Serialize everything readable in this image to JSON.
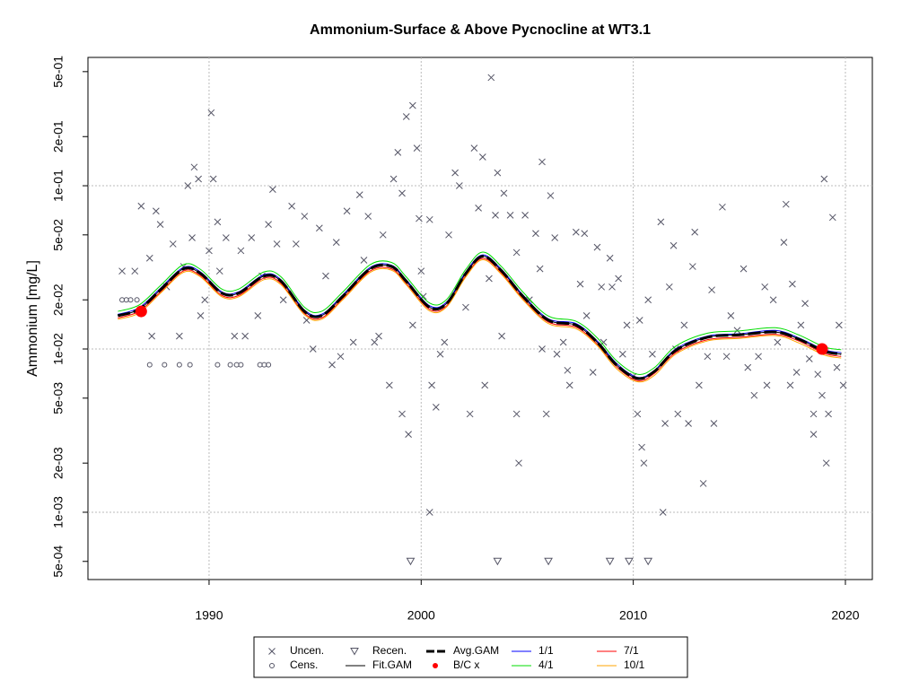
{
  "chart_data": {
    "type": "scatter",
    "title": "Ammonium-Surface & Above Pycnocline at WT3.1",
    "y_label": "Ammonium [mg/L]",
    "log_y": true,
    "grid": true,
    "legend_position": "bottom",
    "xlim": [
      1984.29,
      2021.27
    ],
    "xticks": [
      1990,
      2000,
      2010,
      2020
    ],
    "ylim": [
      0.000387,
      0.611
    ],
    "yticks": [
      {
        "value": 0.5,
        "label": "5e-01"
      },
      {
        "value": 0.2,
        "label": "2e-01"
      },
      {
        "value": 0.1,
        "label": "1e-01"
      },
      {
        "value": 0.05,
        "label": "5e-02"
      },
      {
        "value": 0.02,
        "label": "2e-02"
      },
      {
        "value": 0.01,
        "label": "1e-02"
      },
      {
        "value": 0.005,
        "label": "5e-03"
      },
      {
        "value": 0.002,
        "label": "2e-03"
      },
      {
        "value": 0.001,
        "label": "1e-03"
      },
      {
        "value": 0.0005,
        "label": "5e-04"
      }
    ],
    "grid_values": [
      0.1,
      0.01,
      0.001
    ],
    "series": [
      {
        "name": "Uncen.",
        "color": "#555566",
        "marker": "x",
        "x": [
          1985.9,
          1986.5,
          1986.8,
          1987.2,
          1987.3,
          1987.5,
          1987.7,
          1988.0,
          1988.3,
          1988.6,
          1988.8,
          1989.0,
          1989.2,
          1989.3,
          1989.5,
          1989.6,
          1989.8,
          1990.0,
          1990.1,
          1990.2,
          1990.4,
          1990.5,
          1990.8,
          1991.2,
          1991.5,
          1991.7,
          1992.0,
          1992.3,
          1992.5,
          1992.8,
          1993.0,
          1993.2,
          1993.5,
          1993.9,
          1994.1,
          1994.5,
          1994.6,
          1994.9,
          1995.2,
          1995.5,
          1995.8,
          1996.0,
          1996.2,
          1996.5,
          1996.8,
          1997.1,
          1997.3,
          1997.5,
          1997.8,
          1998.0,
          1998.2,
          1998.5,
          1998.7,
          1998.9,
          1999.1,
          1999.1,
          1999.3,
          1999.4,
          1999.6,
          1999.6,
          1999.8,
          1999.9,
          2000.0,
          2000.1,
          2000.4,
          2000.4,
          2000.5,
          2000.7,
          2000.9,
          2001.1,
          2001.3,
          2001.6,
          2001.8,
          2002.1,
          2002.3,
          2002.5,
          2002.7,
          2002.9,
          2003.0,
          2003.2,
          2003.3,
          2003.5,
          2003.6,
          2003.8,
          2003.9,
          2004.2,
          2004.5,
          2004.5,
          2004.6,
          2004.9,
          2005.1,
          2005.4,
          2005.6,
          2005.7,
          2005.7,
          2005.9,
          2006.1,
          2006.3,
          2006.4,
          2006.7,
          2006.9,
          2007.0,
          2007.3,
          2007.5,
          2007.7,
          2007.8,
          2008.1,
          2008.3,
          2008.5,
          2008.6,
          2008.9,
          2009.0,
          2009.3,
          2009.5,
          2009.7,
          2010.0,
          2010.2,
          2010.3,
          2010.4,
          2010.5,
          2010.7,
          2010.9,
          2011.3,
          2011.4,
          2011.5,
          2011.7,
          2011.9,
          2012.0,
          2012.1,
          2012.4,
          2012.6,
          2012.8,
          2012.9,
          2013.1,
          2013.3,
          2013.5,
          2013.7,
          2013.8,
          2014.2,
          2014.4,
          2014.6,
          2014.9,
          2015.2,
          2015.4,
          2015.7,
          2015.9,
          2016.2,
          2016.3,
          2016.6,
          2016.8,
          2017.1,
          2017.2,
          2017.4,
          2017.5,
          2017.7,
          2017.9,
          2018.1,
          2018.3,
          2018.5,
          2018.5,
          2018.7,
          2018.9,
          2019.0,
          2019.1,
          2019.2,
          2019.4,
          2019.6,
          2019.7,
          2019.9
        ],
        "values": [
          0.03,
          0.03,
          0.075,
          0.036,
          0.012,
          0.07,
          0.058,
          0.024,
          0.044,
          0.012,
          0.032,
          0.1,
          0.048,
          0.13,
          0.11,
          0.016,
          0.02,
          0.04,
          0.28,
          0.11,
          0.06,
          0.03,
          0.048,
          0.012,
          0.04,
          0.012,
          0.048,
          0.016,
          0.028,
          0.058,
          0.095,
          0.044,
          0.02,
          0.075,
          0.044,
          0.065,
          0.015,
          0.01,
          0.055,
          0.028,
          0.008,
          0.045,
          0.009,
          0.07,
          0.011,
          0.088,
          0.035,
          0.065,
          0.011,
          0.012,
          0.05,
          0.006,
          0.11,
          0.16,
          0.09,
          0.004,
          0.265,
          0.003,
          0.31,
          0.014,
          0.17,
          0.063,
          0.03,
          0.021,
          0.062,
          0.001,
          0.006,
          0.0044,
          0.0093,
          0.011,
          0.05,
          0.12,
          0.1,
          0.018,
          0.004,
          0.17,
          0.073,
          0.15,
          0.006,
          0.027,
          0.46,
          0.066,
          0.12,
          0.012,
          0.09,
          0.066,
          0.039,
          0.004,
          0.002,
          0.066,
          0.02,
          0.051,
          0.031,
          0.01,
          0.14,
          0.004,
          0.087,
          0.048,
          0.0093,
          0.011,
          0.0074,
          0.006,
          0.052,
          0.025,
          0.051,
          0.016,
          0.0072,
          0.042,
          0.024,
          0.011,
          0.036,
          0.024,
          0.027,
          0.0093,
          0.014,
          0.0068,
          0.004,
          0.015,
          0.0025,
          0.002,
          0.02,
          0.0093,
          0.06,
          0.001,
          0.0035,
          0.024,
          0.043,
          0.01,
          0.004,
          0.014,
          0.0035,
          0.032,
          0.052,
          0.006,
          0.0015,
          0.009,
          0.023,
          0.0035,
          0.074,
          0.009,
          0.016,
          0.013,
          0.031,
          0.0077,
          0.0052,
          0.009,
          0.024,
          0.006,
          0.02,
          0.011,
          0.045,
          0.077,
          0.006,
          0.025,
          0.0072,
          0.014,
          0.019,
          0.0087,
          0.004,
          0.003,
          0.007,
          0.0052,
          0.11,
          0.002,
          0.004,
          0.064,
          0.0077,
          0.014,
          0.006
        ]
      },
      {
        "name": "Cens.",
        "color": "#555566",
        "marker": "o",
        "x": [
          1985.9,
          1986.1,
          1986.3,
          1986.6,
          1987.2,
          1987.9,
          1988.6,
          1989.1,
          1990.4,
          1991.0,
          1991.3,
          1991.5,
          1992.4,
          1992.6,
          1992.8
        ],
        "values": [
          0.02,
          0.02,
          0.02,
          0.02,
          0.008,
          0.008,
          0.008,
          0.008,
          0.008,
          0.008,
          0.008,
          0.008,
          0.008,
          0.008,
          0.008
        ]
      },
      {
        "name": "Recen.",
        "color": "#555566",
        "marker": "v",
        "x": [
          1999.5,
          2003.6,
          2006.0,
          2008.9,
          2009.8,
          2010.7
        ],
        "values": [
          0.0005,
          0.0005,
          0.0005,
          0.0005,
          0.0005,
          0.0005
        ]
      },
      {
        "name": "Fit.GAM",
        "color": "#000000",
        "marker": "line",
        "width": 1,
        "x": [
          1985.7,
          1986.7,
          1987.7,
          1988.8,
          1989.6,
          1990.6,
          1991.4,
          1992.6,
          1993.4,
          1994.5,
          1995.3,
          1996.3,
          1997.6,
          1998.6,
          1999.3,
          2000.4,
          2001.2,
          2002.1,
          2002.9,
          2003.8,
          2004.8,
          2006,
          2007.3,
          2008.3,
          2009.2,
          2010.2,
          2011,
          2012,
          2013.5,
          2015,
          2016.7,
          2017.8,
          2019,
          2019.8
        ],
        "values": [
          0.016,
          0.0175,
          0.023,
          0.031,
          0.029,
          0.022,
          0.022,
          0.028,
          0.026,
          0.017,
          0.016,
          0.021,
          0.031,
          0.032,
          0.026,
          0.018,
          0.019,
          0.029,
          0.037,
          0.03,
          0.021,
          0.015,
          0.014,
          0.011,
          0.008,
          0.0066,
          0.0073,
          0.0098,
          0.0118,
          0.0122,
          0.0127,
          0.0115,
          0.0097,
          0.0093
        ]
      },
      {
        "name": "Avg.GAM",
        "color": "#000000",
        "marker": "dash",
        "width": 3,
        "x": [
          1985.7,
          1986.7,
          1987.7,
          1988.8,
          1989.6,
          1990.6,
          1991.4,
          1992.6,
          1993.4,
          1994.5,
          1995.3,
          1996.3,
          1997.6,
          1998.6,
          1999.3,
          2000.4,
          2001.2,
          2002.1,
          2002.9,
          2003.8,
          2004.8,
          2006,
          2007.3,
          2008.3,
          2009.2,
          2010.2,
          2011,
          2012,
          2013.5,
          2015,
          2016.7,
          2017.8,
          2019,
          2019.8
        ],
        "values": [
          0.016,
          0.0175,
          0.023,
          0.031,
          0.029,
          0.022,
          0.022,
          0.028,
          0.026,
          0.017,
          0.016,
          0.021,
          0.031,
          0.032,
          0.026,
          0.018,
          0.019,
          0.029,
          0.037,
          0.03,
          0.021,
          0.015,
          0.014,
          0.011,
          0.008,
          0.0066,
          0.0073,
          0.0098,
          0.0118,
          0.0122,
          0.0127,
          0.0115,
          0.0097,
          0.0093
        ]
      },
      {
        "name": "B/C x",
        "color": "#ff0000",
        "marker": "point",
        "x": [
          1986.8,
          2018.9
        ],
        "values": [
          0.017,
          0.01
        ]
      },
      {
        "name": "1/1",
        "color": "#0000ff",
        "marker": "line",
        "width": 1,
        "x": [
          1985.7,
          1986.7,
          1987.7,
          1988.8,
          1989.6,
          1990.6,
          1991.4,
          1992.6,
          1993.4,
          1994.5,
          1995.3,
          1996.3,
          1997.6,
          1998.6,
          1999.3,
          2000.4,
          2001.2,
          2002.1,
          2002.9,
          2003.8,
          2004.8,
          2006,
          2007.3,
          2008.3,
          2009.2,
          2010.2,
          2011,
          2012,
          2013.5,
          2015,
          2016.7,
          2017.8,
          2019,
          2019.8
        ],
        "values": [
          0.0163,
          0.0179,
          0.0235,
          0.0316,
          0.0296,
          0.0224,
          0.0224,
          0.0286,
          0.0265,
          0.0173,
          0.0163,
          0.0214,
          0.0316,
          0.0326,
          0.0265,
          0.0184,
          0.0194,
          0.0296,
          0.0377,
          0.0306,
          0.0214,
          0.0153,
          0.0143,
          0.0112,
          0.0082,
          0.0067,
          0.0074,
          0.01,
          0.012,
          0.0124,
          0.013,
          0.0117,
          0.0099,
          0.0095
        ]
      },
      {
        "name": "4/1",
        "color": "#00dd00",
        "marker": "line",
        "width": 1,
        "x": [
          1985.7,
          1986.7,
          1987.7,
          1988.8,
          1989.6,
          1990.6,
          1991.4,
          1992.6,
          1993.4,
          1994.5,
          1995.3,
          1996.3,
          1997.6,
          1998.6,
          1999.3,
          2000.4,
          2001.2,
          2002.1,
          2002.9,
          2003.8,
          2004.8,
          2006,
          2007.3,
          2008.3,
          2009.2,
          2010.2,
          2011,
          2012,
          2013.5,
          2015,
          2016.7,
          2017.8,
          2019,
          2019.8
        ],
        "values": [
          0.017,
          0.0186,
          0.0244,
          0.0329,
          0.0307,
          0.0233,
          0.0233,
          0.0297,
          0.0276,
          0.018,
          0.017,
          0.0223,
          0.0329,
          0.0339,
          0.0276,
          0.0191,
          0.0201,
          0.0307,
          0.0392,
          0.0318,
          0.0223,
          0.0159,
          0.0148,
          0.0117,
          0.0085,
          0.007,
          0.0077,
          0.0104,
          0.0125,
          0.0129,
          0.0135,
          0.0122,
          0.0103,
          0.0099
        ]
      },
      {
        "name": "7/1",
        "color": "#ff0000",
        "marker": "line",
        "width": 1,
        "x": [
          1985.7,
          1986.7,
          1987.7,
          1988.8,
          1989.6,
          1990.6,
          1991.4,
          1992.6,
          1993.4,
          1994.5,
          1995.3,
          1996.3,
          1997.6,
          1998.6,
          1999.3,
          2000.4,
          2001.2,
          2002.1,
          2002.9,
          2003.8,
          2004.8,
          2006,
          2007.3,
          2008.3,
          2009.2,
          2010.2,
          2011,
          2012,
          2013.5,
          2015,
          2016.7,
          2017.8,
          2019,
          2019.8
        ],
        "values": [
          0.0155,
          0.017,
          0.0223,
          0.0301,
          0.0281,
          0.0213,
          0.0213,
          0.0272,
          0.0252,
          0.0165,
          0.0155,
          0.0204,
          0.0301,
          0.031,
          0.0252,
          0.0175,
          0.0184,
          0.0281,
          0.0359,
          0.0291,
          0.0204,
          0.0146,
          0.0136,
          0.0107,
          0.0078,
          0.0064,
          0.0071,
          0.0095,
          0.0114,
          0.0118,
          0.0123,
          0.0112,
          0.0094,
          0.009
        ]
      },
      {
        "name": "10/1",
        "color": "#ffa500",
        "marker": "line",
        "width": 1,
        "x": [
          1985.7,
          1986.7,
          1987.7,
          1988.8,
          1989.6,
          1990.6,
          1991.4,
          1992.6,
          1993.4,
          1994.5,
          1995.3,
          1996.3,
          1997.6,
          1998.6,
          1999.3,
          2000.4,
          2001.2,
          2002.1,
          2002.9,
          2003.8,
          2004.8,
          2006,
          2007.3,
          2008.3,
          2009.2,
          2010.2,
          2011,
          2012,
          2013.5,
          2015,
          2016.7,
          2017.8,
          2019,
          2019.8
        ],
        "values": [
          0.0152,
          0.0166,
          0.0219,
          0.0295,
          0.0276,
          0.0209,
          0.0209,
          0.0266,
          0.0247,
          0.0162,
          0.0152,
          0.02,
          0.0295,
          0.0304,
          0.0247,
          0.0171,
          0.0181,
          0.0276,
          0.0352,
          0.0285,
          0.02,
          0.0143,
          0.0133,
          0.0105,
          0.0076,
          0.0063,
          0.0069,
          0.0093,
          0.0112,
          0.0116,
          0.0121,
          0.0109,
          0.0092,
          0.0088
        ]
      }
    ]
  }
}
